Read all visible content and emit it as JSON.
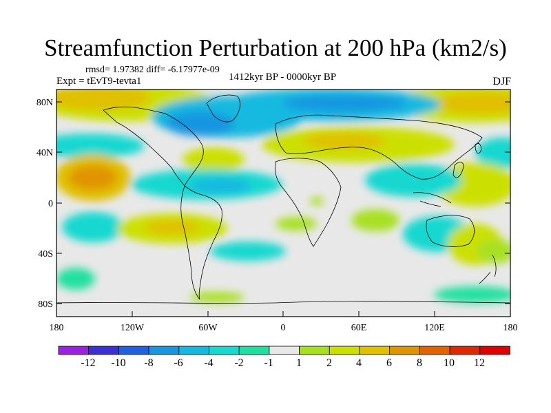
{
  "header": {
    "title": "Streamfunction Perturbation at 200 hPa (km2/s)",
    "stats": "rmsd= 1.97382 diff= -6.17977e-09",
    "experiment": "Expt = tEvT9-tevta1",
    "period": "1412kyr BP - 0000kyr BP",
    "season": "DJF"
  },
  "map": {
    "lat_ticks": [
      "80N",
      "40N",
      "0",
      "40S",
      "80S"
    ],
    "lon_ticks": [
      "180",
      "120W",
      "60W",
      "0",
      "60E",
      "120E",
      "180"
    ],
    "background_color": "#e8e8e8",
    "land_outline_color": "#000000"
  },
  "colorbar": {
    "labels": [
      "-12",
      "-10",
      "-8",
      "-6",
      "-4",
      "-2",
      "-1",
      "1",
      "2",
      "4",
      "6",
      "8",
      "10",
      "12"
    ],
    "colors": [
      "#9b20e0",
      "#3b2fd8",
      "#2060e0",
      "#1896e0",
      "#15b9e0",
      "#18d8d0",
      "#20e0a0",
      "#e8e8e8",
      "#a8e020",
      "#cce000",
      "#e0c000",
      "#e09400",
      "#e06400",
      "#e02800",
      "#e00000"
    ]
  }
}
